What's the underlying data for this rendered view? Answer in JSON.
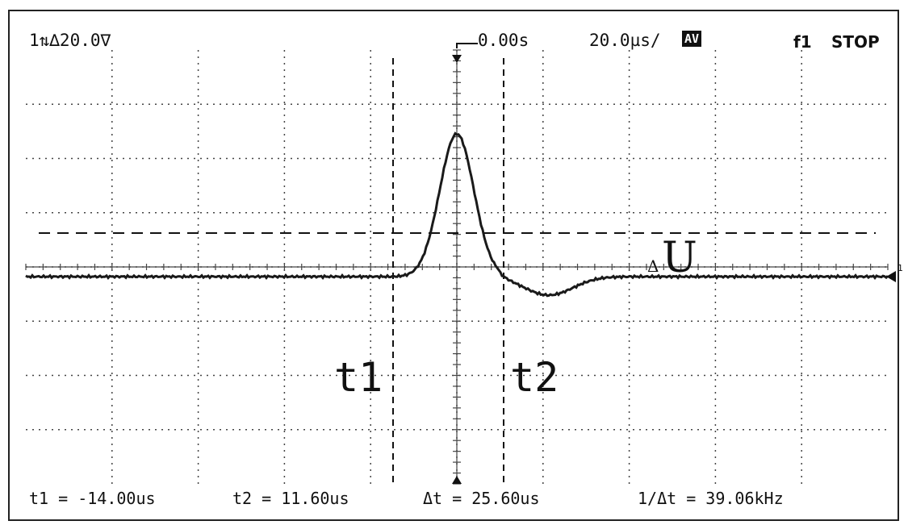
{
  "header": {
    "channel_setting": "1⇅∆20.0∇",
    "trigger_time": "0.00s",
    "timebase": "20.0µs/",
    "acq_mode": "AV",
    "function": "f1",
    "run_state": "STOP"
  },
  "screen": {
    "cursor_labels": {
      "t1": "t1",
      "t2": "t2",
      "delta_u": "U",
      "delta_symbol": "Δ"
    },
    "ground_marker": "1"
  },
  "measurements": {
    "t1": "t1 = -14.00us",
    "t2": "t2 = 11.60us",
    "dt": "Δt = 25.60us",
    "inv_dt": "1/Δt = 39.06kHz"
  },
  "colors": {
    "trace": "#1a1a1a",
    "grid": "#444444",
    "background": "#ffffff"
  }
}
